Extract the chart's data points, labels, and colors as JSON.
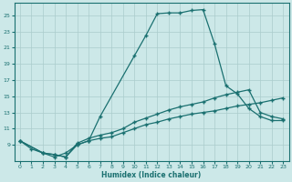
{
  "xlabel": "Humidex (Indice chaleur)",
  "background_color": "#cce8e8",
  "line_color": "#1a7070",
  "grid_color": "#aacccc",
  "xlim": [
    -0.5,
    23.5
  ],
  "ylim": [
    7,
    26.5
  ],
  "yticks": [
    9,
    11,
    13,
    15,
    17,
    19,
    21,
    23,
    25
  ],
  "xticks": [
    0,
    1,
    2,
    3,
    4,
    5,
    6,
    7,
    8,
    9,
    10,
    11,
    12,
    13,
    14,
    15,
    16,
    17,
    18,
    19,
    20,
    21,
    22,
    23
  ],
  "line1_x": [
    0,
    1,
    2,
    3,
    4,
    5,
    6,
    7,
    10,
    11,
    12,
    13,
    14,
    15,
    16,
    17,
    18,
    19,
    20,
    21,
    22,
    23
  ],
  "line1_y": [
    9.5,
    8.5,
    8.0,
    7.5,
    8.0,
    9.0,
    9.5,
    12.5,
    20.0,
    22.5,
    25.2,
    25.3,
    25.3,
    25.6,
    25.7,
    21.5,
    16.3,
    15.3,
    13.5,
    12.5,
    12.0,
    12.0
  ],
  "line2_x": [
    0,
    2,
    3,
    4,
    5,
    6,
    7,
    8,
    9,
    10,
    11,
    12,
    13,
    14,
    15,
    16,
    17,
    18,
    19,
    20,
    21,
    22,
    23
  ],
  "line2_y": [
    9.5,
    8.0,
    7.8,
    7.5,
    9.2,
    9.8,
    10.2,
    10.5,
    11.0,
    11.8,
    12.3,
    12.8,
    13.3,
    13.7,
    14.0,
    14.3,
    14.8,
    15.2,
    15.5,
    15.8,
    13.0,
    12.5,
    12.2
  ],
  "line3_x": [
    0,
    2,
    3,
    4,
    5,
    6,
    7,
    8,
    9,
    10,
    11,
    12,
    13,
    14,
    15,
    16,
    17,
    18,
    19,
    20,
    21,
    22,
    23
  ],
  "line3_y": [
    9.5,
    8.0,
    7.8,
    7.5,
    9.0,
    9.5,
    9.8,
    10.0,
    10.5,
    11.0,
    11.5,
    11.8,
    12.2,
    12.5,
    12.8,
    13.0,
    13.2,
    13.5,
    13.8,
    14.0,
    14.2,
    14.5,
    14.8
  ]
}
